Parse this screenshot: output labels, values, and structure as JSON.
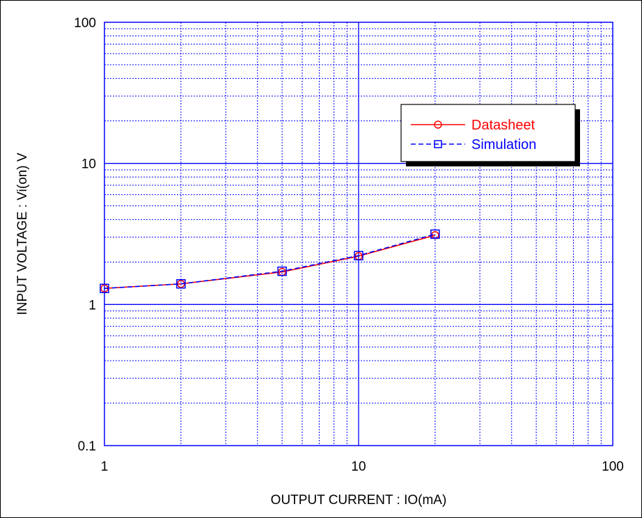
{
  "chart_data": {
    "type": "line",
    "xlabel": "OUTPUT CURRENT : IO(mA)",
    "ylabel": "INPUT VOLTAGE : Vi(on) V",
    "x_scale": "log",
    "y_scale": "log",
    "xlim": [
      1,
      100
    ],
    "ylim": [
      0.1,
      100
    ],
    "x_ticks": [
      "1",
      "10",
      "100"
    ],
    "y_ticks": [
      "0.1",
      "1",
      "10",
      "100"
    ],
    "grid": true,
    "legend_position": "top-right",
    "series": [
      {
        "name": "Datasheet",
        "color": "#ff0000",
        "marker": "circle",
        "line_style": "solid",
        "x": [
          1,
          2,
          5,
          10,
          20
        ],
        "y": [
          1.3,
          1.4,
          1.7,
          2.2,
          3.1
        ]
      },
      {
        "name": "Simulation",
        "color": "#0000ff",
        "marker": "square",
        "line_style": "dashed",
        "x": [
          1,
          2,
          5,
          10,
          20
        ],
        "y": [
          1.3,
          1.4,
          1.72,
          2.22,
          3.15
        ]
      }
    ]
  }
}
